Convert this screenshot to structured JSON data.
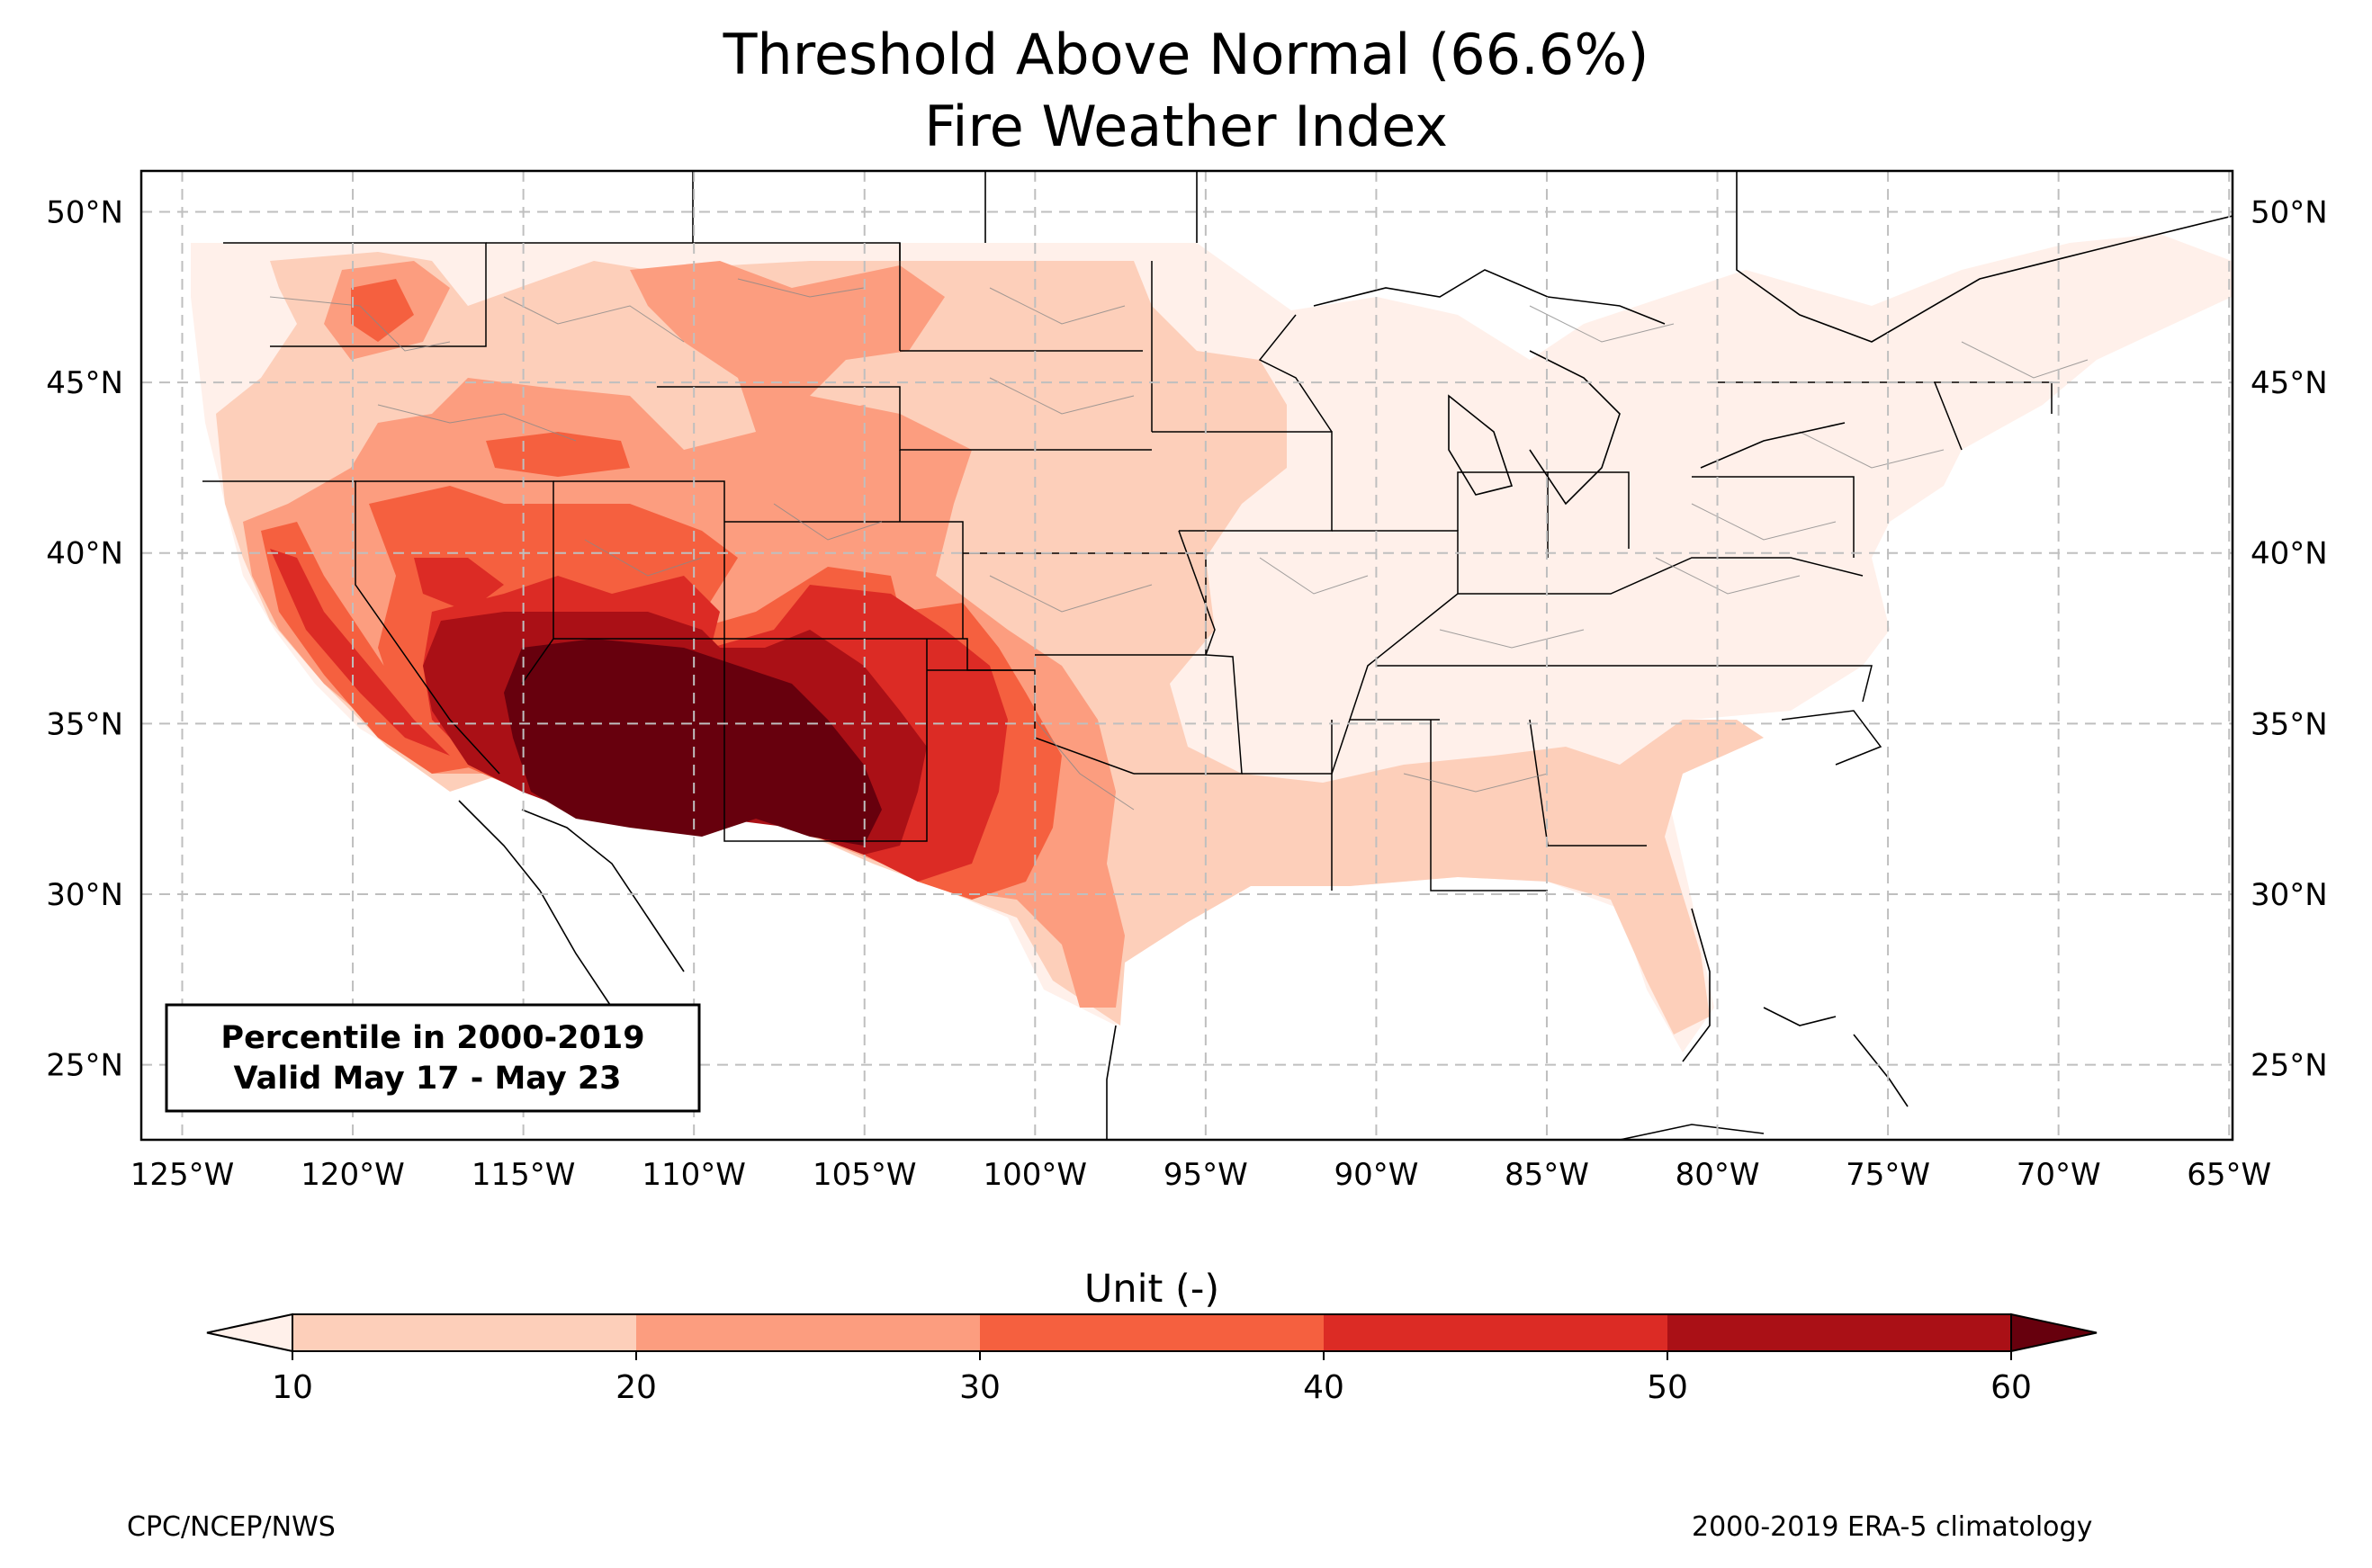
{
  "title": {
    "line1": "Threshold Above Normal (66.6%)",
    "line2": "Fire Weather Index"
  },
  "map": {
    "lat_labels": [
      "50°N",
      "45°N",
      "40°N",
      "35°N",
      "30°N",
      "25°N"
    ],
    "lat_values": [
      50,
      45,
      40,
      35,
      30,
      25
    ],
    "lon_labels": [
      "125°W",
      "120°W",
      "115°W",
      "110°W",
      "105°W",
      "100°W",
      "95°W",
      "90°W",
      "85°W",
      "80°W",
      "75°W",
      "70°W",
      "65°W"
    ],
    "lon_values": [
      -125,
      -120,
      -115,
      -110,
      -105,
      -100,
      -95,
      -90,
      -85,
      -80,
      -75,
      -70,
      -65
    ],
    "extent": {
      "lon_min": -126.2,
      "lon_max": -64.9,
      "lat_min": 22.8,
      "lat_max": 51.2
    },
    "info_box": {
      "line1": "Percentile in 2000-2019",
      "line2": "Valid May 17 - May 23"
    }
  },
  "colorbar": {
    "label": "Unit (-)",
    "ticks": [
      "10",
      "20",
      "30",
      "40",
      "50",
      "60"
    ],
    "colors": [
      "#fff0ea",
      "#fdcfba",
      "#fc9d7f",
      "#f5603f",
      "#dc2b25",
      "#aa1016",
      "#67000d"
    ]
  },
  "footer": {
    "left": "CPC/NCEP/NWS",
    "right": "2000-2019 ERA-5 climatology"
  }
}
